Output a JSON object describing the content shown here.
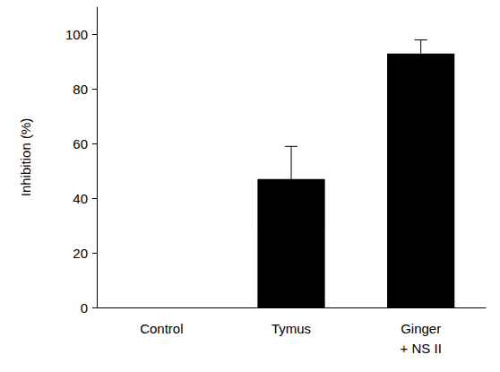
{
  "chart_data": {
    "type": "bar",
    "y_label": "Inhibition (%)",
    "categories": [
      "Control",
      "Tymus",
      "Ginger\n+ NS II"
    ],
    "values": [
      0,
      47,
      93
    ],
    "errors": [
      null,
      12,
      5
    ],
    "color": "#000000",
    "ylim": [
      0,
      110
    ],
    "yticks": [
      0,
      20,
      40,
      60,
      80,
      100
    ],
    "grid": false
  }
}
